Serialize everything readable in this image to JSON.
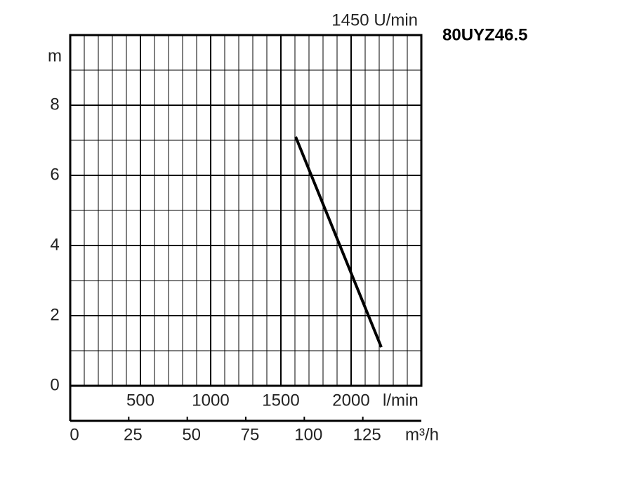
{
  "chart_data": {
    "type": "line",
    "title": "80UYZ46.5",
    "subtitle": "1450 U/min",
    "y_label": "m",
    "x_label": "l/min",
    "x2_label": "m³/h",
    "x": [
      1605,
      2215
    ],
    "series": [
      {
        "name": "80UYZ46.5",
        "color": "#000000",
        "values": [
          7.1,
          1.1
        ]
      }
    ],
    "xlim": [
      0,
      2500
    ],
    "xticks": [
      500,
      1000,
      1500,
      2000
    ],
    "x2lim": [
      0,
      150
    ],
    "x2ticks": [
      0,
      25,
      50,
      75,
      100,
      125
    ],
    "ylim": [
      0,
      10
    ],
    "yticks": [
      0,
      2,
      4,
      6,
      8
    ],
    "grid": true
  }
}
